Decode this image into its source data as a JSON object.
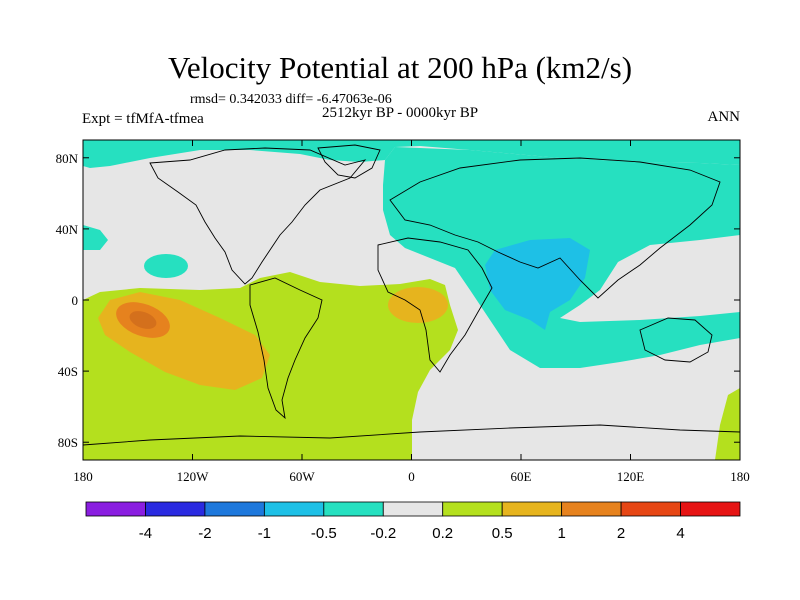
{
  "chart_data": {
    "type": "heatmap",
    "title": "Velocity Potential at 200 hPa (km2/s)",
    "stats_line": "rmsd= 0.342033 diff= -6.47063e-06",
    "left_label": "Expt = tfMfA-tfmea",
    "center_label": "2512kyr BP - 0000kyr BP",
    "right_label": "ANN",
    "x_range": [
      -180,
      180
    ],
    "y_range": [
      -90,
      90
    ],
    "x_ticks": [
      {
        "value": -180,
        "label": "180"
      },
      {
        "value": -120,
        "label": "120W"
      },
      {
        "value": -60,
        "label": "60W"
      },
      {
        "value": 0,
        "label": "0"
      },
      {
        "value": 60,
        "label": "60E"
      },
      {
        "value": 120,
        "label": "120E"
      },
      {
        "value": 180,
        "label": "180"
      }
    ],
    "y_ticks": [
      {
        "value": 80,
        "label": "80N"
      },
      {
        "value": 40,
        "label": "40N"
      },
      {
        "value": 0,
        "label": "0"
      },
      {
        "value": -40,
        "label": "40S"
      },
      {
        "value": -80,
        "label": "80S"
      }
    ],
    "colorbar": {
      "levels": [
        "-4",
        "-2",
        "-1",
        "-0.5",
        "-0.2",
        "0.2",
        "0.5",
        "1",
        "2",
        "4"
      ],
      "colors": [
        "#8a1ee0",
        "#2a2ae0",
        "#1e78dc",
        "#1ec0e6",
        "#26e0c0",
        "#e6e6e6",
        "#b4e01e",
        "#e6b41e",
        "#e6821e",
        "#e64614",
        "#e61414"
      ]
    },
    "regions": [
      {
        "name": "north-high-lat-negative",
        "level": "-0.5 to -0.2",
        "color": "#26e0c0"
      },
      {
        "name": "eurasia-indian-ocean-negative",
        "level": "-0.5 to -0.2",
        "color": "#26e0c0"
      },
      {
        "name": "indian-ocean-core-negative",
        "level": "-1 to -0.5",
        "color": "#1ec0e6"
      },
      {
        "name": "southern-positive",
        "level": "0.2 to 0.5",
        "color": "#b4e01e"
      },
      {
        "name": "south-pacific-positive",
        "level": "0.5 to 1",
        "color": "#e6b41e"
      },
      {
        "name": "south-pacific-core-positive",
        "level": "1 to 2",
        "color": "#e6821e"
      },
      {
        "name": "tropical-atlantic-positive",
        "level": "0.5 to 1",
        "color": "#e6b41e"
      }
    ]
  }
}
